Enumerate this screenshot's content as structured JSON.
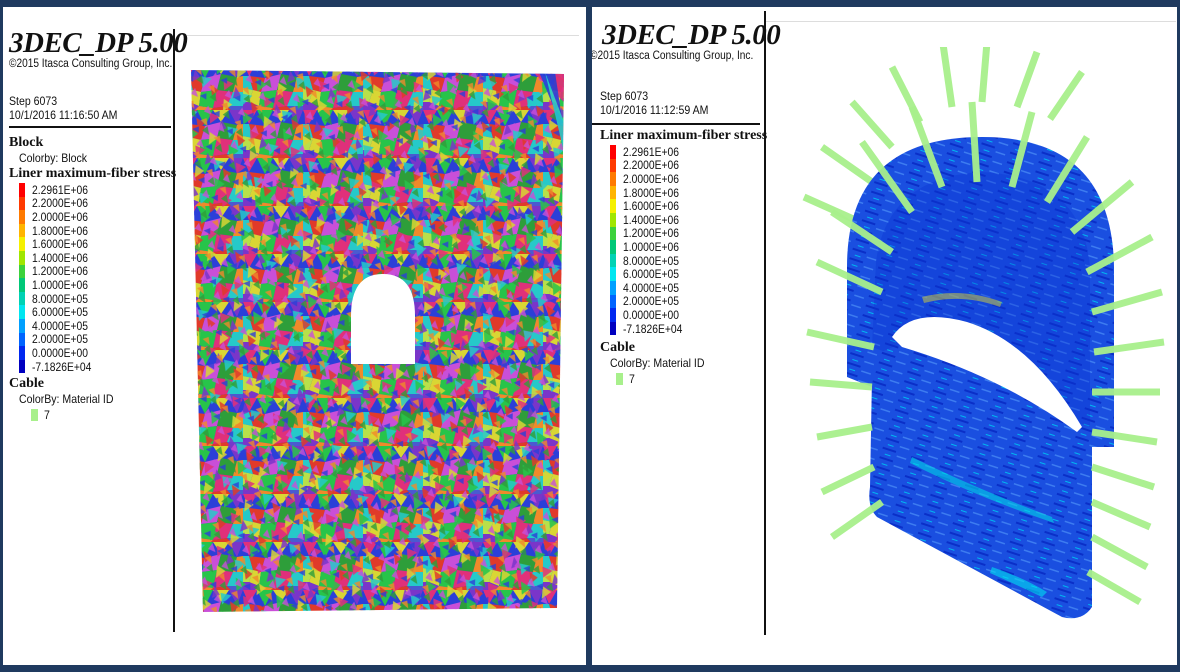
{
  "left_panel": {
    "logo": "3DEC_DP 5.00",
    "copyright": "©2015 Itasca Consulting Group, Inc.",
    "step": "Step 6073",
    "datetime": "10/1/2016 11:16:50 AM",
    "block_heading": "Block",
    "block_colorby": "Colorby: Block",
    "liner_heading": "Liner maximum-fiber stress",
    "cable_heading": "Cable",
    "cable_colorby": "ColorBy: Material ID",
    "cable_value": "7"
  },
  "right_panel": {
    "logo": "3DEC_DP 5.00",
    "copyright": "©2015 Itasca Consulting Group, Inc.",
    "step": "Step 6073",
    "datetime": "10/1/2016 11:12:59 AM",
    "liner_heading": "Liner maximum-fiber stress",
    "cable_heading": "Cable",
    "cable_colorby": "ColorBy: Material ID",
    "cable_value": "7"
  },
  "stress_scale": [
    {
      "label": "2.2961E+06",
      "color": "#ff0000"
    },
    {
      "label": "2.2000E+06",
      "color": "#ff3a00"
    },
    {
      "label": "2.0000E+06",
      "color": "#ff7a00"
    },
    {
      "label": "1.8000E+06",
      "color": "#ffb400"
    },
    {
      "label": "1.6000E+06",
      "color": "#f5f000"
    },
    {
      "label": "1.4000E+06",
      "color": "#a0e600"
    },
    {
      "label": "1.2000E+06",
      "color": "#3cd23c"
    },
    {
      "label": "1.0000E+06",
      "color": "#00c878"
    },
    {
      "label": "8.0000E+05",
      "color": "#00d2b4"
    },
    {
      "label": "6.0000E+05",
      "color": "#00e6f0"
    },
    {
      "label": "4.0000E+05",
      "color": "#00a0ff"
    },
    {
      "label": "2.0000E+05",
      "color": "#0064ff"
    },
    {
      "label": "0.0000E+00",
      "color": "#0028f0"
    },
    {
      "label": "-7.1826E+04",
      "color": "#0000c0"
    }
  ],
  "cable_color": "#a8f08c",
  "block_palette": [
    "#e0307a",
    "#2b3fd8",
    "#27c44a",
    "#d9d634",
    "#7a35c9",
    "#e03a2a",
    "#26c9c9",
    "#2e9e3a",
    "#c94fd8",
    "#f08a2a",
    "#4a5ad0",
    "#b8e04a"
  ]
}
